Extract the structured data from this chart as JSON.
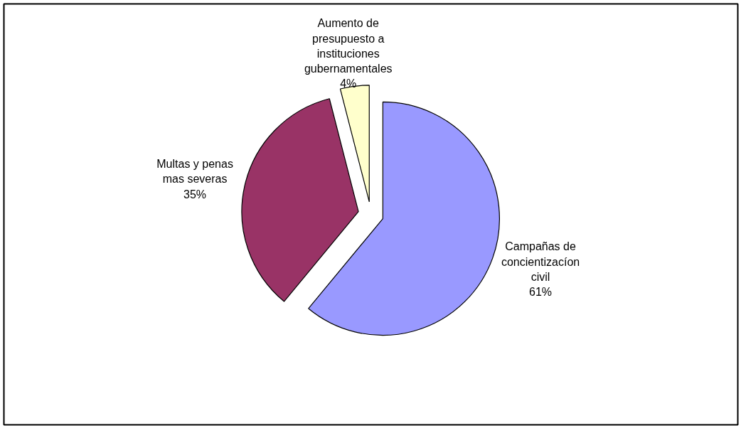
{
  "chart_data": {
    "type": "pie",
    "categories": [
      "Campañas de concientizacíon civil",
      "Multas y penas mas severas",
      "Aumento de presupuesto a instituciones gubernamentales"
    ],
    "values": [
      61,
      35,
      4
    ],
    "value_labels": [
      "61%",
      "35%",
      "4%"
    ],
    "colors": [
      "#9999ff",
      "#993366",
      "#ffffcc"
    ],
    "legend": false
  }
}
